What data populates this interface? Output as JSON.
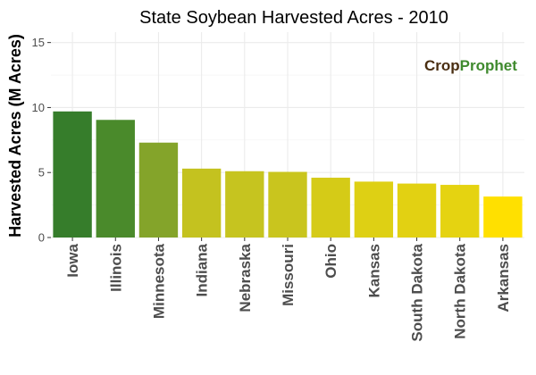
{
  "chart_data": {
    "type": "bar",
    "title": "State Soybean Harvested Acres - 2010",
    "ylabel": "Harvested Acres (M Acres)",
    "xlabel": "",
    "ylim": [
      0,
      15.8
    ],
    "yticks": [
      0,
      5,
      10,
      15
    ],
    "grid": true,
    "legend": "none",
    "categories": [
      "Iowa",
      "Illinois",
      "Minnesota",
      "Indiana",
      "Nebraska",
      "Missouri",
      "Ohio",
      "Kansas",
      "South Dakota",
      "North Dakota",
      "Arkansas"
    ],
    "values": [
      9.7,
      9.05,
      7.3,
      5.3,
      5.1,
      5.05,
      4.6,
      4.3,
      4.15,
      4.05,
      3.15
    ],
    "colors": [
      "#367d2b",
      "#4a8a2b",
      "#84a42a",
      "#c4c21f",
      "#c6c41f",
      "#c9c51e",
      "#d5cb17",
      "#ded014",
      "#e2d112",
      "#e5d311",
      "#ffe000"
    ]
  },
  "watermark": {
    "part1": "Crop",
    "part2": "Prophet"
  }
}
